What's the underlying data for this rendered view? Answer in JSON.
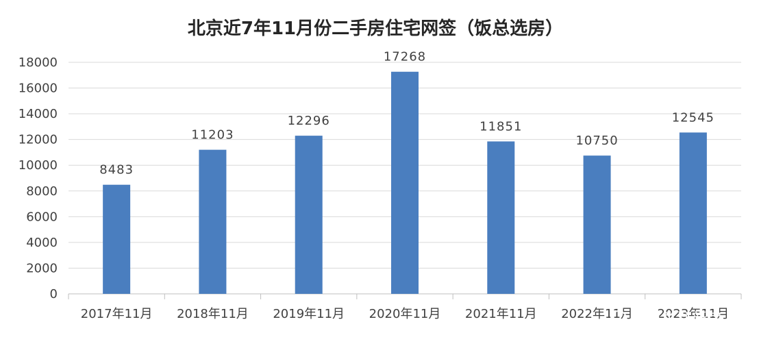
{
  "chart_data": {
    "type": "bar",
    "title": "北京近7年11月份二手房住宅网签（饭总选房）",
    "categories": [
      "2017年11月",
      "2018年11月",
      "2019年11月",
      "2020年11月",
      "2021年11月",
      "2022年11月",
      "2023年11月"
    ],
    "values": [
      8483,
      11203,
      12296,
      17268,
      11851,
      10750,
      12545
    ],
    "ylim": [
      0,
      18000
    ],
    "yticks": [
      0,
      2000,
      4000,
      6000,
      8000,
      10000,
      12000,
      14000,
      16000,
      18000
    ],
    "grid": true,
    "bar_color": "#4a7ebf"
  },
  "watermark": "每日关注新房"
}
